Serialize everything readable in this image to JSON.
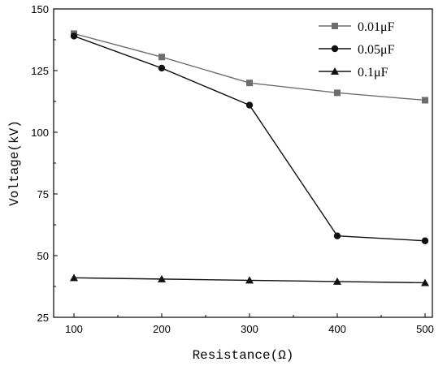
{
  "chart_data": {
    "type": "line",
    "xlabel": "Resistance(Ω)",
    "ylabel": "Voltage(kV)",
    "x": [
      100,
      200,
      300,
      400,
      500
    ],
    "xlim": [
      100,
      500
    ],
    "ylim": [
      25,
      150
    ],
    "xticks": [
      "100",
      "200",
      "300",
      "400",
      "500"
    ],
    "yticks": [
      "25",
      "50",
      "75",
      "100",
      "125",
      "150"
    ],
    "grid": false,
    "legend_position": "top-right",
    "series": [
      {
        "name": "0.01μF",
        "marker": "square",
        "color": "#6e6e6e",
        "values": [
          140,
          130.5,
          120,
          116,
          113
        ]
      },
      {
        "name": "0.05μF",
        "marker": "circle",
        "color": "#111111",
        "values": [
          139,
          126,
          111,
          58,
          56
        ]
      },
      {
        "name": "0.1μF",
        "marker": "triangle",
        "color": "#111111",
        "values": [
          41,
          40.5,
          40,
          39.5,
          39
        ]
      }
    ]
  }
}
